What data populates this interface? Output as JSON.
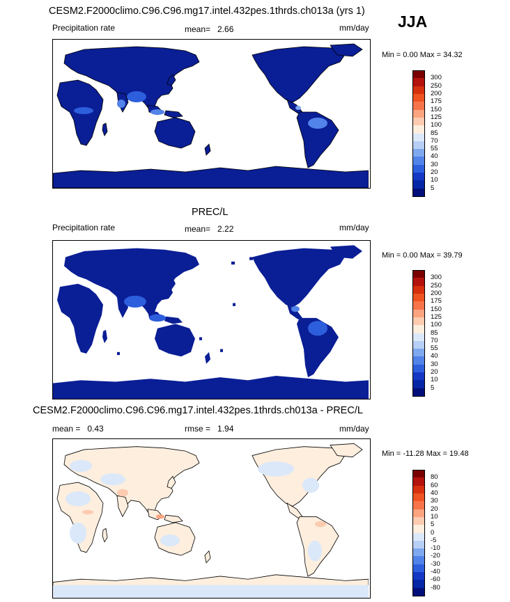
{
  "season": "JJA",
  "panels": [
    {
      "id": "model",
      "title": "CESM2.F2000climo.C96.C96.mg17.intel.432pes.1thrds.ch013a (yrs 1)",
      "variable": "Precipitation rate",
      "stat_label": "mean=",
      "stat_value": "2.66",
      "units": "mm/day",
      "min_label": "Min =",
      "min_value": "0.00",
      "max_label": "Max =",
      "max_value": "34.32",
      "colorbar_labels": [
        "300",
        "250",
        "200",
        "175",
        "150",
        "125",
        "100",
        "85",
        "70",
        "55",
        "40",
        "30",
        "20",
        "10",
        "5"
      ],
      "colorbar_colors": [
        "#7a0000",
        "#b3130c",
        "#d7300f",
        "#ee5321",
        "#f7744a",
        "#fba47f",
        "#fdcbb0",
        "#fdeede",
        "#dbe8f9",
        "#b7cff5",
        "#7fa8ee",
        "#5283e8",
        "#2d5fdd",
        "#1538c4",
        "#0726a5",
        "#020f7a"
      ]
    },
    {
      "id": "obs",
      "title": "PREC/L",
      "variable": "Precipitation rate",
      "stat_label": "mean=",
      "stat_value": "2.22",
      "units": "mm/day",
      "min_label": "Min =",
      "min_value": "0.00",
      "max_label": "Max =",
      "max_value": "39.79",
      "colorbar_labels": [
        "300",
        "250",
        "200",
        "175",
        "150",
        "125",
        "100",
        "85",
        "70",
        "55",
        "40",
        "30",
        "20",
        "10",
        "5"
      ],
      "colorbar_colors": [
        "#7a0000",
        "#b3130c",
        "#d7300f",
        "#ee5321",
        "#f7744a",
        "#fba47f",
        "#fdcbb0",
        "#fdeede",
        "#dbe8f9",
        "#b7cff5",
        "#7fa8ee",
        "#5283e8",
        "#2d5fdd",
        "#1538c4",
        "#0726a5",
        "#020f7a"
      ]
    },
    {
      "id": "diff",
      "title": "CESM2.F2000climo.C96.C96.mg17.intel.432pes.1thrds.ch013a - PREC/L",
      "stat_label": "mean =",
      "stat_value": "0.43",
      "rmse_label": "rmse =",
      "rmse_value": "1.94",
      "units": "mm/day",
      "min_label": "Min =",
      "min_value": "-11.28",
      "max_label": "Max =",
      "max_value": "19.48",
      "colorbar_labels": [
        "80",
        "60",
        "40",
        "30",
        "20",
        "10",
        "5",
        "0",
        "-5",
        "-10",
        "-20",
        "-30",
        "-40",
        "-60",
        "-80"
      ],
      "colorbar_colors": [
        "#7a0000",
        "#b3130c",
        "#d7300f",
        "#ee5321",
        "#f7744a",
        "#fba47f",
        "#fdcbb0",
        "#fdeede",
        "#dbe8f9",
        "#b7cff5",
        "#7fa8ee",
        "#5283e8",
        "#2d5fdd",
        "#1538c4",
        "#0726a5",
        "#020f7a"
      ]
    }
  ]
}
